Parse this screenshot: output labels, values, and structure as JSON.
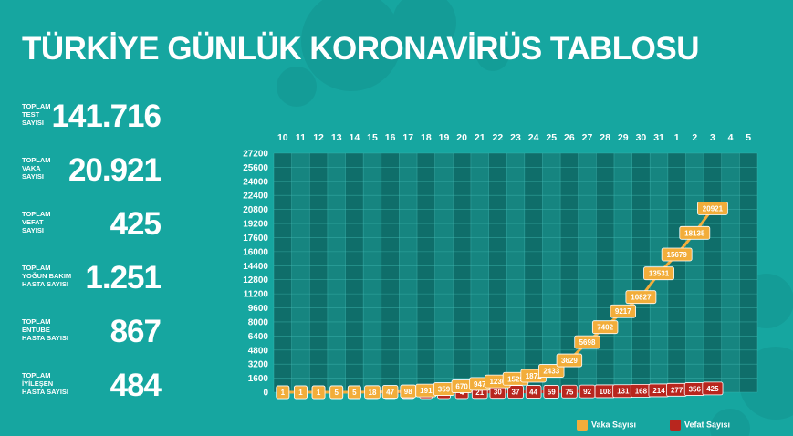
{
  "title": "TÜRKİYE GÜNLÜK KORONAVİRÜS TABLOSU",
  "stats": [
    {
      "label_lines": [
        "TOPLAM",
        "TEST",
        "SAYISI"
      ],
      "value": "141.716"
    },
    {
      "label_lines": [
        "TOPLAM",
        "VAKA",
        "SAYISI"
      ],
      "value": "20.921"
    },
    {
      "label_lines": [
        "TOPLAM",
        "VEFAT",
        "SAYISI"
      ],
      "value": "425"
    },
    {
      "label_lines": [
        "TOPLAM",
        "YOĞUN BAKIM",
        "HASTA SAYISI"
      ],
      "value": "1.251"
    },
    {
      "label_lines": [
        "TOPLAM",
        "ENTUBE",
        "HASTA SAYISI"
      ],
      "value": "867"
    },
    {
      "label_lines": [
        "TOPLAM",
        "İYİLEŞEN",
        "HASTA SAYISI"
      ],
      "value": "484"
    }
  ],
  "legend": {
    "cases": "Vaka Sayısı",
    "deaths": "Vefat Sayısı"
  },
  "colors": {
    "background": "#16a6a0",
    "cases": "#f2ad3a",
    "deaths": "#b8261e",
    "grid_dark": "#0f6e6a",
    "grid_light": "#168580"
  },
  "chart_data": {
    "type": "line",
    "categories": [
      "10",
      "11",
      "12",
      "13",
      "14",
      "15",
      "16",
      "17",
      "18",
      "19",
      "20",
      "21",
      "22",
      "23",
      "24",
      "25",
      "26",
      "27",
      "28",
      "29",
      "30",
      "31",
      "1",
      "2",
      "3",
      "4",
      "5"
    ],
    "yticks": [
      "27200",
      "25600",
      "24000",
      "22400",
      "20800",
      "19200",
      "17600",
      "16000",
      "14400",
      "12800",
      "11200",
      "9600",
      "8000",
      "6400",
      "4800",
      "3200",
      "1600",
      "0"
    ],
    "ylim": [
      0,
      27200
    ],
    "series": [
      {
        "name": "Vaka Sayısı",
        "values": [
          1,
          1,
          1,
          5,
          5,
          18,
          47,
          98,
          191,
          359,
          670,
          947,
          1236,
          1529,
          1872,
          2433,
          3629,
          5698,
          7402,
          9217,
          10827,
          13531,
          15679,
          18135,
          20921,
          null,
          null
        ]
      },
      {
        "name": "Vefat Sayısı",
        "values": [
          0,
          0,
          0,
          0,
          0,
          0,
          1,
          1,
          2,
          3,
          4,
          21,
          30,
          37,
          44,
          59,
          75,
          92,
          108,
          131,
          168,
          214,
          277,
          356,
          425,
          null,
          null
        ]
      }
    ]
  }
}
